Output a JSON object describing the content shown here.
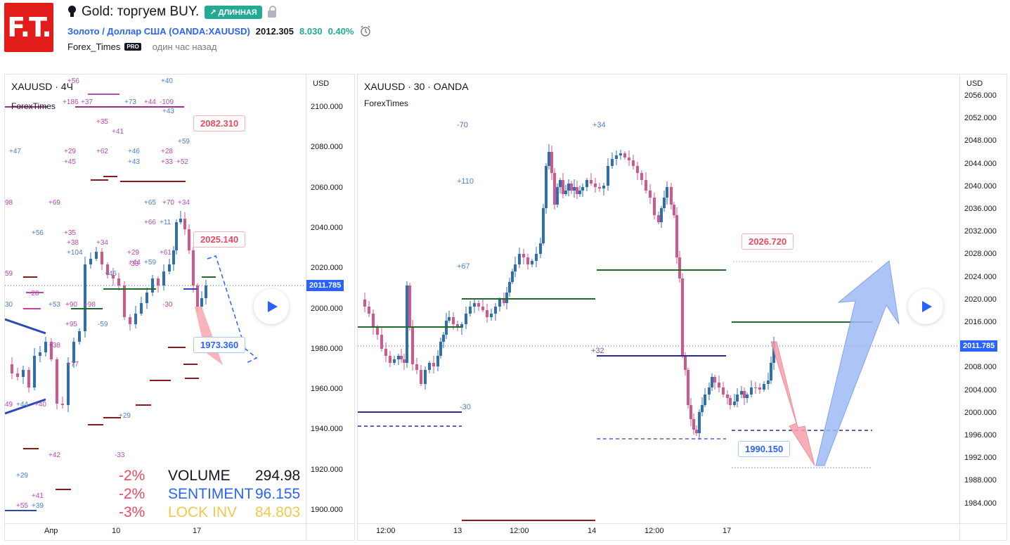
{
  "header": {
    "logo_text": "F.T.",
    "idea_title": "Gold: торгуем BUY.",
    "badge": "↗ ДЛИННАЯ",
    "symbol_name": "Золото / Доллар США",
    "symbol_code": "(OANDA:XAUUSD)",
    "symbol_open": "(",
    "price": "2012.305",
    "change": "8.030",
    "change_pct": "0.40%",
    "author": "Forex_Times",
    "pro_label": "PRO",
    "time_ago": "один час назад",
    "icons": [
      "lightbulb-icon",
      "lock-icon",
      "alarm-clock-icon",
      "play-icon"
    ]
  },
  "left_chart": {
    "title": "XAUUSD · 4Ч",
    "subtitle": "ForexTimes",
    "currency": "USD",
    "y_ticks": [
      "2100.000",
      "2080.000",
      "2060.000",
      "2040.000",
      "2020.000",
      "2000.000",
      "1980.000",
      "1960.000",
      "1940.000",
      "1920.000",
      "1900.000"
    ],
    "x_ticks": [
      "Апр",
      "10",
      "17"
    ],
    "current_price": "2011.785",
    "callouts": {
      "top": "2082.310",
      "mid": "2025.140",
      "low": "1973.360"
    },
    "stats": [
      {
        "pct": "-2%",
        "label": "VOLUME",
        "value": "294.98",
        "color": "#131722"
      },
      {
        "pct": "-2%",
        "label": "SENTIMENT",
        "value": "96.155",
        "color": "#2962ff"
      },
      {
        "pct": "-3%",
        "label": "LOCK INV",
        "value": "84.803",
        "color": "#f2c94c"
      }
    ],
    "numbers": [
      "+56",
      "+40",
      "+186",
      "+37",
      "+73",
      "+44",
      "-109",
      "+43",
      "+35",
      "+41",
      "+47",
      "+29",
      "+62",
      "+46",
      "+28",
      "+45",
      "+43",
      "+33",
      "+52",
      "+59",
      "98",
      "+69",
      "+65",
      "+70",
      "+34",
      "+56",
      "+35",
      "+66",
      "+11",
      "+38",
      "+34",
      "+104",
      "+29",
      "+44",
      "+46",
      "-33",
      "+61",
      "+59",
      "59",
      "-28",
      "+53",
      "+90",
      "+98",
      "30",
      "-30",
      "+95",
      "-59",
      "+38",
      "+77",
      "+44",
      "49",
      "+40",
      "+29",
      "+42",
      "-33",
      "+29",
      "+41",
      "+55",
      "+39"
    ]
  },
  "right_chart": {
    "title": "XAUUSD · 30 · OANDA",
    "subtitle": "ForexTimes",
    "currency": "USD",
    "y_ticks": [
      "2056.000",
      "2052.000",
      "2048.000",
      "2044.000",
      "2040.000",
      "2036.000",
      "2032.000",
      "2028.000",
      "2024.000",
      "2020.000",
      "2016.000",
      "2012.000",
      "2008.000",
      "2004.000",
      "2000.000",
      "1996.000",
      "1992.000",
      "1988.000",
      "1984.000"
    ],
    "x_ticks": [
      "12:00",
      "13",
      "12:00",
      "14",
      "12:00",
      "17"
    ],
    "current_price": "2011.785",
    "callouts": {
      "top": "2026.720",
      "low": "1990.150"
    },
    "numbers": [
      "-70",
      "+34",
      "+110",
      "+67",
      "+32",
      "-30"
    ]
  }
}
